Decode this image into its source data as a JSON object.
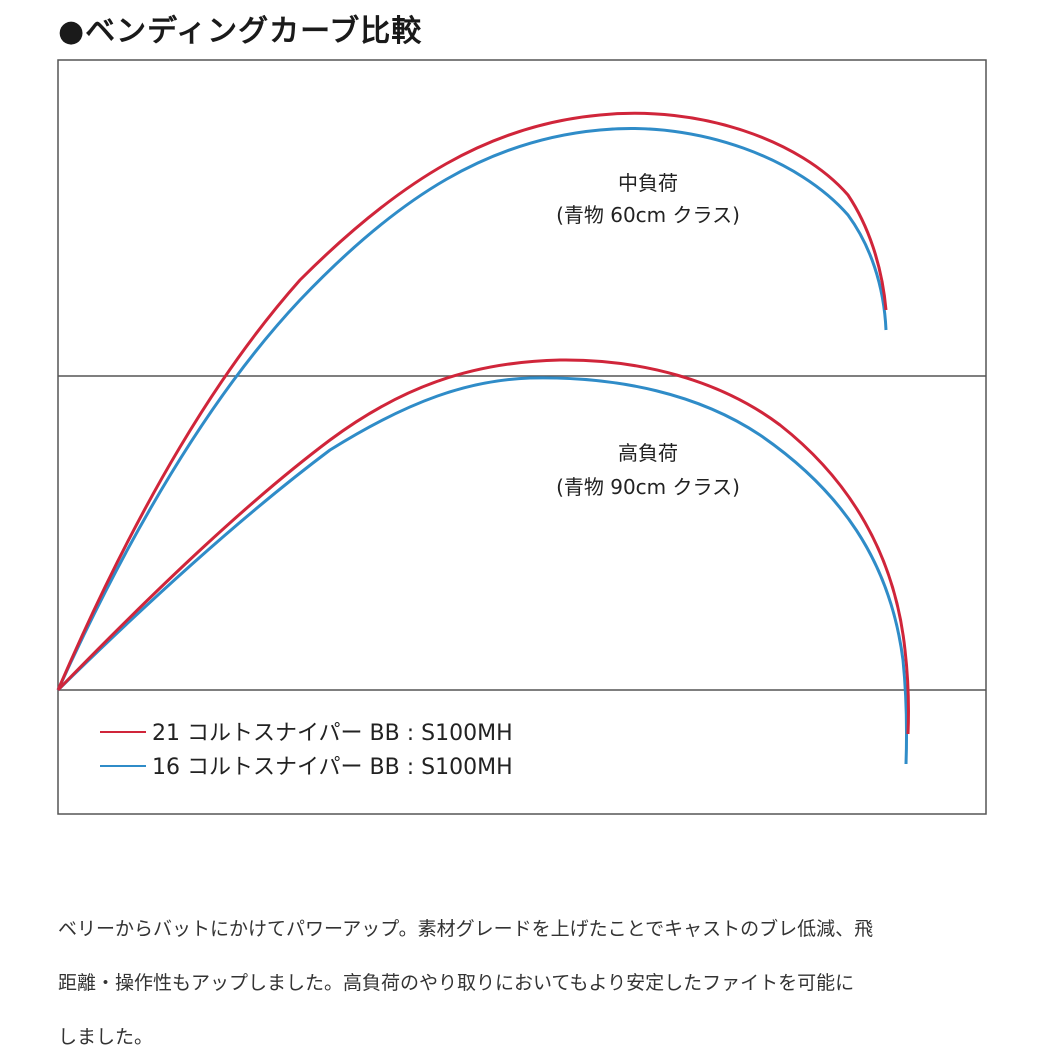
{
  "heading": "●ベンディングカーブ比較",
  "chart_data": {
    "type": "line",
    "title": "ベンディングカーブ比較",
    "xlabel": "",
    "ylabel": "",
    "grid": true,
    "legend_position": "bottom-left",
    "series": [
      {
        "name": "21 コルトスナイパー BB : S100MH",
        "color": "#d0253a"
      },
      {
        "name": "16 コルトスナイパー BB : S100MH",
        "color": "#2f8cc8"
      }
    ],
    "annotations": [
      {
        "id": "medium",
        "lines": [
          "中負荷",
          "(青物 60cm クラス)"
        ]
      },
      {
        "id": "heavy",
        "lines": [
          "高負荷",
          "(青物 90cm クラス)"
        ]
      }
    ]
  },
  "description": [
    "ベリーからバットにかけてパワーアップ。素材グレードを上げたことでキャストのブレ低減、飛",
    "距離・操作性もアップしました。高負荷のやり取りにおいてもより安定したファイトを可能に",
    "しました。"
  ]
}
